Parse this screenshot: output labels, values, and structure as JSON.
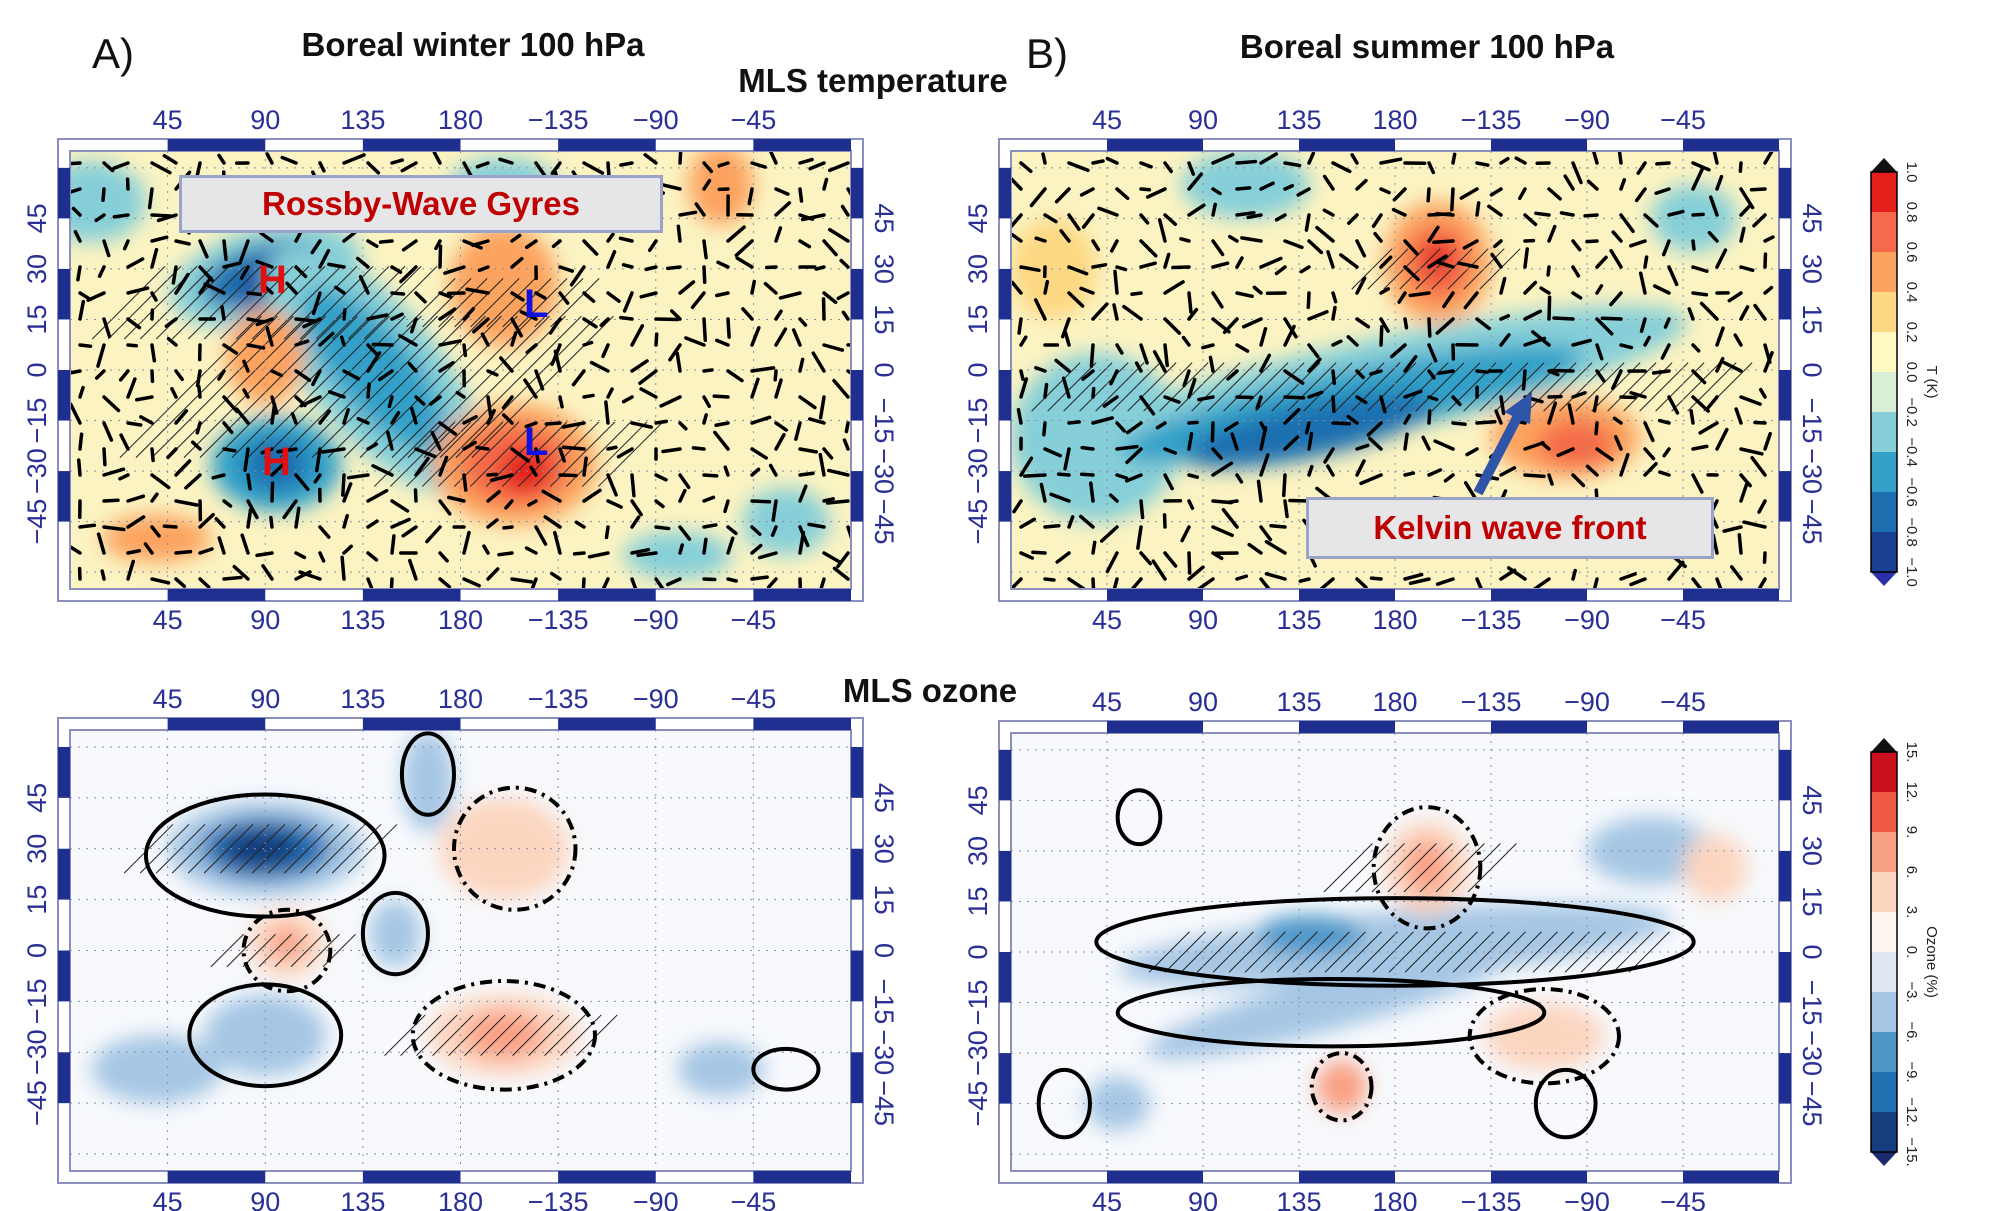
{
  "panel_labels": {
    "a": "A)",
    "b": "B)"
  },
  "titles": {
    "winter": "Boreal winter 100 hPa",
    "summer": "Boreal summer 100 hPa",
    "temperature": "MLS temperature",
    "ozone": "MLS ozone"
  },
  "annotations": {
    "rossby": "Rossby-Wave Gyres",
    "kelvin": "Kelvin wave front",
    "high": "H",
    "low": "L"
  },
  "colors": {
    "axis_text": "#2a2f96",
    "frame_band": "#1f2f8f",
    "annotation_text": "#c00000",
    "high_marker": "#e01010",
    "low_marker": "#1010e0"
  },
  "chart_data": [
    {
      "type": "heatmap",
      "panel": "A) Boreal winter 100 hPa – MLS temperature",
      "lon_ticks": [
        "45",
        "90",
        "135",
        "180",
        "−135",
        "−90",
        "−45"
      ],
      "lat_ticks": [
        "−45",
        "−30",
        "−15",
        "0",
        "15",
        "30",
        "45"
      ],
      "overlays": [
        "wind vectors",
        "hatching"
      ],
      "colorbar": "temperature"
    },
    {
      "type": "heatmap",
      "panel": "B) Boreal summer 100 hPa – MLS temperature",
      "lon_ticks": [
        "45",
        "90",
        "135",
        "180",
        "−135",
        "−90",
        "−45"
      ],
      "lat_ticks": [
        "−45",
        "−30",
        "−15",
        "0",
        "15",
        "30",
        "45"
      ],
      "overlays": [
        "wind vectors",
        "hatching"
      ],
      "colorbar": "temperature"
    },
    {
      "type": "heatmap",
      "panel": "Boreal winter 100 hPa – MLS ozone",
      "lon_ticks": [
        "45",
        "90",
        "135",
        "180",
        "−135",
        "−90",
        "−45"
      ],
      "lat_ticks": [
        "−45",
        "−30",
        "−15",
        "0",
        "15",
        "30",
        "45"
      ],
      "overlays": [
        "contours (solid negative, dashed positive)",
        "hatching"
      ],
      "colorbar": "ozone"
    },
    {
      "type": "heatmap",
      "panel": "Boreal summer 100 hPa – MLS ozone",
      "lon_ticks": [
        "45",
        "90",
        "135",
        "180",
        "−135",
        "−90",
        "−45"
      ],
      "lat_ticks": [
        "−45",
        "−30",
        "−15",
        "0",
        "15",
        "30",
        "45"
      ],
      "overlays": [
        "contours (solid negative, dashed positive)",
        "hatching"
      ],
      "colorbar": "ozone"
    }
  ],
  "colorbars": {
    "temperature": {
      "label": "T (K)",
      "ticks": [
        "−1.0",
        "−0.8",
        "−0.6",
        "−0.4",
        "−0.2",
        "0.0",
        "0.2",
        "0.4",
        "0.6",
        "0.8",
        "1.0"
      ],
      "colors": [
        "#1b3f93",
        "#1f6fb0",
        "#32a0c8",
        "#86cfd8",
        "#d7efd7",
        "#fdf9c0",
        "#fdd882",
        "#fca35e",
        "#f56a4a",
        "#e3201c"
      ],
      "under": "#2a2fa8",
      "over": "#111111"
    },
    "ozone": {
      "label": "Ozone (%)",
      "ticks": [
        "−15.",
        "−12.",
        "−9.",
        "−6.",
        "−3.",
        "0.",
        "3.",
        "6.",
        "9.",
        "12.",
        "15."
      ],
      "colors": [
        "#163e7e",
        "#2271b3",
        "#4e97c9",
        "#a5c6e4",
        "#dde6f1",
        "#fdf3ef",
        "#fcd5c0",
        "#f9a185",
        "#ef5a45",
        "#c8101f"
      ],
      "under": "#1a2a6c",
      "over": "#111111"
    }
  }
}
